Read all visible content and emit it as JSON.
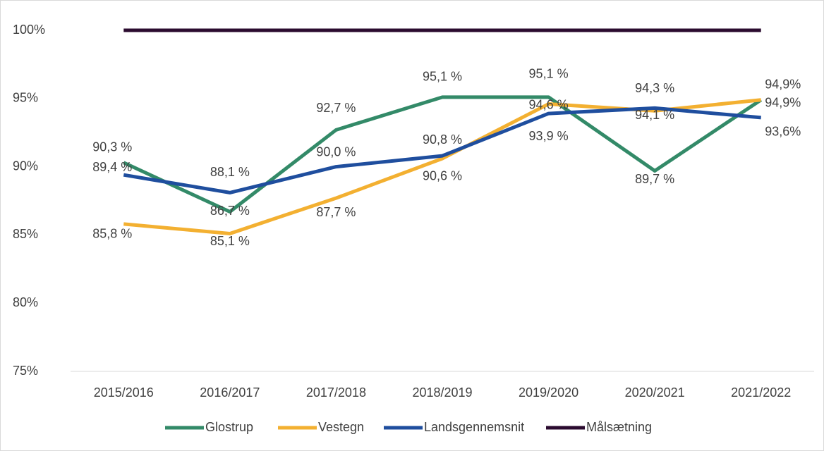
{
  "chart_data": {
    "type": "line",
    "categories": [
      "2015/2016",
      "2016/2017",
      "2017/2018",
      "2018/2019",
      "2019/2020",
      "2020/2021",
      "2021/2022"
    ],
    "series": [
      {
        "name": "Glostrup",
        "color": "#338a68",
        "values": [
          90.3,
          86.7,
          92.7,
          95.1,
          95.1,
          89.7,
          94.9
        ],
        "value_labels": [
          "90,3 %",
          "86,7 %",
          "92,7 %",
          "95,1 %",
          "95,1 %",
          "89,7 %",
          "94,9%"
        ]
      },
      {
        "name": "Vestegn",
        "color": "#f3b031",
        "values": [
          85.8,
          85.1,
          87.7,
          90.6,
          94.6,
          94.1,
          94.9
        ],
        "value_labels": [
          "85,8 %",
          "85,1 %",
          "87,7 %",
          "90,6 %",
          "94,6 %",
          "94,1 %",
          "94,9%"
        ]
      },
      {
        "name": "Landsgennemsnit",
        "color": "#1f4e9e",
        "values": [
          89.4,
          88.1,
          90.0,
          90.8,
          93.9,
          94.3,
          93.6
        ],
        "value_labels": [
          "89,4 %",
          "88,1 %",
          "90,0 %",
          "90,8 %",
          "93,9 %",
          "94,3 %",
          "93,6%"
        ]
      },
      {
        "name": "Målsætning",
        "color": "#2b0b2f",
        "values": [
          100,
          100,
          100,
          100,
          100,
          100,
          100
        ]
      }
    ],
    "ylim": [
      75,
      100
    ],
    "yticks": [
      {
        "value": 75,
        "label": "75%"
      },
      {
        "value": 80,
        "label": "80%"
      },
      {
        "value": 85,
        "label": "85%"
      },
      {
        "value": 90,
        "label": "90%"
      },
      {
        "value": 95,
        "label": "95%"
      },
      {
        "value": 100,
        "label": "100%"
      }
    ],
    "legend": "bottom"
  }
}
